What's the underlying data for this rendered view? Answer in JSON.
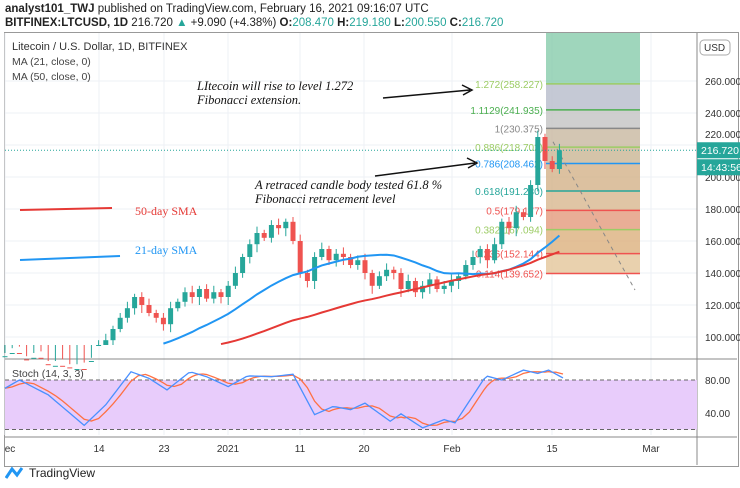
{
  "header": {
    "author": "analyst101_TWJ",
    "published": "published on TradingView.com, February 16, 2021 09:16:07 UTC",
    "symbol": "BITFINEX:LTCUSD, 1D",
    "last": "216.720",
    "change": "+9.090 (+4.38%)",
    "o_label": "O:",
    "o": "208.470",
    "h_label": "H:",
    "h": "219.180",
    "l_label": "L:",
    "l": "200.550",
    "c_label": "C:",
    "c": "216.720"
  },
  "legend": {
    "title": "Litecoin / U.S. Dollar, 1D, BITFINEX",
    "ma21": "MA (21, close, 0)",
    "ma50": "MA (50, close, 0)",
    "stoch": "Stoch (14, 3, 3)"
  },
  "price_axis": {
    "currency": "USD",
    "ticks": [
      "260.000",
      "240.000",
      "220.000",
      "200.000",
      "180.000",
      "160.000",
      "140.000",
      "120.000",
      "100.000"
    ],
    "last_price": "216.720",
    "countdown": "14:43:56"
  },
  "stoch_axis": {
    "ticks": [
      "80.00",
      "40.00"
    ]
  },
  "time_axis": [
    "ec",
    "14",
    "23",
    "2021",
    "11",
    "20",
    "Feb",
    "15",
    "Mar"
  ],
  "annotations": {
    "fib_ext": "LItecoin will rise to level 1.272 Fibonacci extension.",
    "retrace": "A retraced candle body  tested 61.8 % Fibonacci retracement level",
    "sma50": "50-day SMA",
    "sma21": "21-day SMA"
  },
  "colors": {
    "up": "#26a69a",
    "down": "#ef5350",
    "ma21": "#2196f3",
    "ma50": "#e53935",
    "stochK": "#4a90ff",
    "stochD": "#ff7043"
  },
  "brand": "TradingView",
  "chart_data": {
    "type": "candlestick",
    "start": "Dec 1 2020",
    "ylim": [
      80,
      270
    ],
    "close": [
      88,
      90,
      86,
      84,
      87,
      83,
      80,
      82,
      81,
      78,
      80,
      79,
      85,
      95,
      98,
      105,
      112,
      118,
      125,
      120,
      115,
      112,
      108,
      118,
      122,
      128,
      125,
      130,
      124,
      128,
      125,
      132,
      140,
      150,
      158,
      165,
      162,
      170,
      168,
      172,
      160,
      140,
      135,
      150,
      155,
      148,
      152,
      150,
      145,
      148,
      140,
      132,
      138,
      142,
      140,
      130,
      135,
      128,
      132,
      136,
      130,
      132,
      135,
      138,
      145,
      150,
      155,
      148,
      158,
      172,
      168,
      178,
      175,
      195,
      225,
      210,
      205,
      216.72
    ],
    "fib": [
      {
        "label": "1.272(258.227)",
        "v": 258.227,
        "c": "#9ccc65"
      },
      {
        "label": "1.1129(241.935)",
        "v": 241.935,
        "c": "#4caf50"
      },
      {
        "label": "1(230.375)",
        "v": 230.375,
        "c": "#888"
      },
      {
        "label": "0.886(218.702)",
        "v": 218.702,
        "c": "#9ccc65"
      },
      {
        "label": "0.786(208.462)",
        "v": 208.462,
        "c": "#2196f3"
      },
      {
        "label": "0.618(191.230)",
        "v": 191.23,
        "c": "#26a69a"
      },
      {
        "label": "0.5(179.177)",
        "v": 179.177,
        "c": "#ef5350"
      },
      {
        "label": "0.382(167.094)",
        "v": 167.094,
        "c": "#9ccc65"
      },
      {
        "label": "0.236(152.144)",
        "v": 152.144,
        "c": "#ef5350"
      },
      {
        "label": "0.114(139.652)",
        "v": 139.652,
        "c": "#ef5350"
      }
    ],
    "stoch_k": [
      [
        0,
        70
      ],
      [
        2,
        80
      ],
      [
        6,
        62
      ],
      [
        11,
        25
      ],
      [
        14,
        50
      ],
      [
        17.5,
        90
      ],
      [
        20,
        82
      ],
      [
        22.5,
        68
      ],
      [
        25.7,
        90
      ],
      [
        28,
        84
      ],
      [
        31,
        72
      ],
      [
        33.7,
        85
      ],
      [
        37,
        84
      ],
      [
        40,
        87
      ],
      [
        43,
        38
      ],
      [
        45.6,
        48
      ],
      [
        48,
        44
      ],
      [
        50,
        52
      ],
      [
        53.5,
        30
      ],
      [
        55,
        39
      ],
      [
        58,
        22
      ],
      [
        61,
        32
      ],
      [
        62.5,
        28
      ],
      [
        66.8,
        85
      ],
      [
        69,
        80
      ],
      [
        72,
        92
      ],
      [
        74,
        88
      ],
      [
        75.5,
        92
      ],
      [
        77.6,
        82
      ]
    ]
  }
}
